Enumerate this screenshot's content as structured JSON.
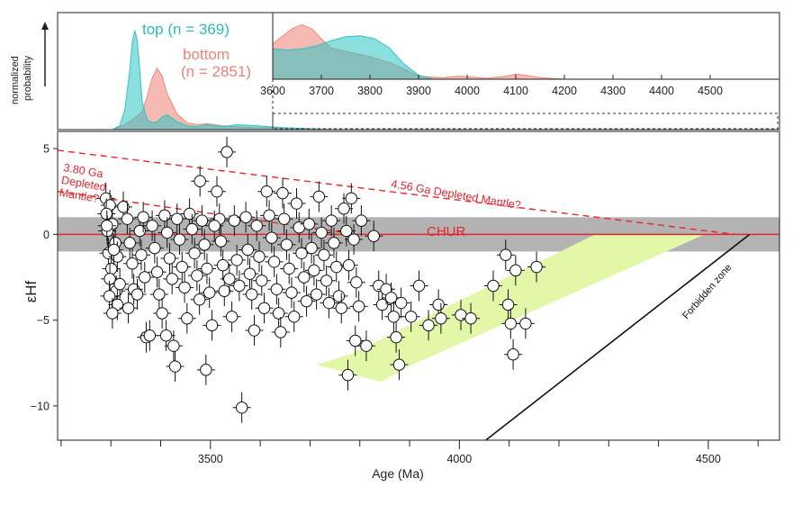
{
  "chart_data": [
    {
      "type": "area",
      "panel": "top density panel",
      "ylabel_lines": [
        "normalized",
        "probability"
      ],
      "xlim": [
        3200,
        4650
      ],
      "series": [
        {
          "name": "top (n = 369)",
          "color": "#2ec4c4",
          "x": [
            3310,
            3325,
            3335,
            3345,
            3350,
            3355,
            3360,
            3365,
            3370,
            3380,
            3390,
            3400,
            3410,
            3420,
            3440,
            3460,
            3480,
            3500,
            3530,
            3560,
            3600,
            3650,
            3700,
            3750
          ],
          "y": [
            0.0,
            0.04,
            0.2,
            0.6,
            0.88,
            1.0,
            0.9,
            0.6,
            0.28,
            0.1,
            0.07,
            0.08,
            0.13,
            0.15,
            0.08,
            0.04,
            0.03,
            0.05,
            0.03,
            0.05,
            0.04,
            0.02,
            0.01,
            0.0
          ]
        },
        {
          "name": "bottom (n = 2851)",
          "color": "#f08a80",
          "x": [
            3310,
            3330,
            3350,
            3370,
            3380,
            3390,
            3400,
            3410,
            3420,
            3440,
            3460,
            3480,
            3500,
            3530,
            3560,
            3600,
            3650,
            3700,
            3750
          ],
          "y": [
            0.0,
            0.04,
            0.1,
            0.18,
            0.34,
            0.52,
            0.62,
            0.54,
            0.36,
            0.16,
            0.07,
            0.05,
            0.06,
            0.04,
            0.03,
            0.02,
            0.02,
            0.01,
            0.0
          ]
        }
      ]
    },
    {
      "type": "area",
      "panel": "inset 3600-4600 Ma",
      "xlim": [
        3600,
        4600
      ],
      "x_ticks": [
        3600,
        3700,
        3800,
        3900,
        4000,
        4100,
        4200,
        4300,
        4400,
        4500
      ],
      "series": [
        {
          "name": "top",
          "color": "#2ec4c4",
          "x": [
            3600,
            3630,
            3660,
            3690,
            3720,
            3750,
            3780,
            3810,
            3840,
            3870,
            3900,
            3930
          ],
          "y": [
            0.6,
            0.58,
            0.6,
            0.66,
            0.76,
            0.84,
            0.86,
            0.8,
            0.62,
            0.3,
            0.08,
            0.0
          ]
        },
        {
          "name": "bottom",
          "color": "#f08a80",
          "x": [
            3600,
            3620,
            3640,
            3660,
            3680,
            3700,
            3720,
            3750,
            3800,
            3850,
            3900,
            3950,
            3980,
            4000,
            4040,
            4080,
            4100,
            4120,
            4150,
            4200
          ],
          "y": [
            0.7,
            0.85,
            1.0,
            1.08,
            1.0,
            0.8,
            0.62,
            0.55,
            0.45,
            0.3,
            0.06,
            0.03,
            0.06,
            0.05,
            0.02,
            0.06,
            0.1,
            0.08,
            0.03,
            0.0
          ]
        }
      ]
    },
    {
      "type": "scatter",
      "panel": "main",
      "xlabel": "Age (Ma)",
      "ylabel": "εHf",
      "xlim": [
        3200,
        4650
      ],
      "ylim": [
        -12,
        6
      ],
      "x_ticks": [
        3500,
        4000,
        4500
      ],
      "x_minor_step": 100,
      "y_ticks": [
        5,
        0,
        -5,
        -10
      ],
      "chur_band": [
        -1,
        1
      ],
      "annotations": {
        "chur": "CHUR",
        "dm456": "4.56 Ga Depleted Mantle?",
        "dm380": [
          "3.80 Ga",
          "Depleted",
          "Mantle?"
        ],
        "forbidden": "Forbidden zone"
      },
      "lines": {
        "chur": [
          [
            3200,
            0
          ],
          [
            4650,
            0
          ]
        ],
        "dm456": [
          [
            3200,
            4.9
          ],
          [
            4560,
            0
          ]
        ],
        "dm380": [
          [
            3200,
            2.5
          ],
          [
            3800,
            0
          ]
        ],
        "forbidden": [
          [
            4060,
            -12
          ],
          [
            4590,
            0
          ]
        ]
      },
      "arrow_polygon": [
        [
          4280,
          0
        ],
        [
          4500,
          0
        ],
        [
          3905,
          -7.7
        ],
        [
          3850,
          -8.6
        ],
        [
          3720,
          -7.6
        ],
        [
          3787,
          -7
        ],
        [
          4280,
          0
        ]
      ],
      "points": [
        [
          3297,
          2.1
        ],
        [
          3305,
          1.7
        ],
        [
          3298,
          1.2
        ],
        [
          3310,
          0.6
        ],
        [
          3300,
          0.2
        ],
        [
          3316,
          -0.5
        ],
        [
          3302,
          -1.1
        ],
        [
          3320,
          -1.3
        ],
        [
          3308,
          -2
        ],
        [
          3305,
          -2.6
        ],
        [
          3318,
          -3.3
        ],
        [
          3304,
          -3.6
        ],
        [
          3320,
          -4.1
        ],
        [
          3310,
          -4.6
        ],
        [
          3325,
          -2.9
        ],
        [
          3313,
          -0.9
        ],
        [
          3299,
          0.5
        ],
        [
          3332,
          1.6
        ],
        [
          3340,
          0.9
        ],
        [
          3345,
          -0.5
        ],
        [
          3350,
          -1.7
        ],
        [
          3353,
          -3.2
        ],
        [
          3342,
          -4.3
        ],
        [
          3365,
          0.2
        ],
        [
          3372,
          1.0
        ],
        [
          3368,
          -1.2
        ],
        [
          3375,
          -2.5
        ],
        [
          3360,
          -3.5
        ],
        [
          3378,
          -6
        ],
        [
          3385,
          -5.9
        ],
        [
          3390,
          0.5
        ],
        [
          3395,
          -0.8
        ],
        [
          3400,
          -2.2
        ],
        [
          3404,
          -3.5
        ],
        [
          3410,
          -4.6
        ],
        [
          3415,
          1.1
        ],
        [
          3420,
          0.1
        ],
        [
          3425,
          -1.4
        ],
        [
          3430,
          -2.6
        ],
        [
          3418,
          -5.9
        ],
        [
          3433,
          -6.5
        ],
        [
          3436,
          -7.7
        ],
        [
          3440,
          0.9
        ],
        [
          3445,
          -0.3
        ],
        [
          3450,
          -1.9
        ],
        [
          3455,
          -3.1
        ],
        [
          3460,
          -4.9
        ],
        [
          3465,
          1.2
        ],
        [
          3470,
          0.3
        ],
        [
          3475,
          -1.1
        ],
        [
          3480,
          -2.4
        ],
        [
          3485,
          -3.8
        ],
        [
          3490,
          0.8
        ],
        [
          3495,
          -0.6
        ],
        [
          3500,
          -2
        ],
        [
          3505,
          -3.4
        ],
        [
          3510,
          -5.3
        ],
        [
          3486,
          3.1
        ],
        [
          3498,
          -7.9
        ],
        [
          3520,
          2.5
        ],
        [
          3525,
          0.9
        ],
        [
          3528,
          -0.4
        ],
        [
          3532,
          -1.8
        ],
        [
          3535,
          -3.3
        ],
        [
          3515,
          0.5
        ],
        [
          3540,
          4.8
        ],
        [
          3545,
          -2.6
        ],
        [
          3550,
          -4.8
        ],
        [
          3555,
          0.8
        ],
        [
          3560,
          -1.5
        ],
        [
          3565,
          -3
        ],
        [
          3570,
          -10.1
        ],
        [
          3578,
          1.0
        ],
        [
          3582,
          -0.9
        ],
        [
          3586,
          -2.3
        ],
        [
          3590,
          -3.5
        ],
        [
          3595,
          -5.6
        ],
        [
          3600,
          0.5
        ],
        [
          3605,
          -1.3
        ],
        [
          3610,
          -2.7
        ],
        [
          3615,
          -4.3
        ],
        [
          3620,
          2.5
        ],
        [
          3625,
          1.1
        ],
        [
          3630,
          -0.2
        ],
        [
          3635,
          -1.6
        ],
        [
          3640,
          -3.2
        ],
        [
          3644,
          -4.6
        ],
        [
          3648,
          -5.7
        ],
        [
          3652,
          2.4
        ],
        [
          3655,
          0.9
        ],
        [
          3660,
          -0.6
        ],
        [
          3665,
          -2
        ],
        [
          3670,
          -3.4
        ],
        [
          3675,
          -4.8
        ],
        [
          3680,
          1.8
        ],
        [
          3685,
          0.4
        ],
        [
          3690,
          -1.1
        ],
        [
          3695,
          -2.5
        ],
        [
          3700,
          -3.9
        ],
        [
          3705,
          0.6
        ],
        [
          3710,
          -0.8
        ],
        [
          3715,
          -2.1
        ],
        [
          3720,
          -3.5
        ],
        [
          3725,
          2.2
        ],
        [
          3730,
          0.1
        ],
        [
          3735,
          -1.2
        ],
        [
          3740,
          -2.7
        ],
        [
          3745,
          -4
        ],
        [
          3750,
          0.8
        ],
        [
          3755,
          -0.5
        ],
        [
          3760,
          -1.9
        ],
        [
          3765,
          -3.6
        ],
        [
          3770,
          -4.3
        ],
        [
          3775,
          1.5
        ],
        [
          3780,
          0.2
        ],
        [
          3785,
          -1.8
        ],
        [
          3790,
          2.1
        ],
        [
          3795,
          -0.3
        ],
        [
          3800,
          -2.8
        ],
        [
          3805,
          -4.2
        ],
        [
          3810,
          0.8
        ],
        [
          3835,
          -0.1
        ],
        [
          3798,
          -6.2
        ],
        [
          3820,
          -6.5
        ],
        [
          3783,
          -8.2
        ],
        [
          3845,
          -3.0
        ],
        [
          3852,
          -4.1
        ],
        [
          3860,
          -3.2
        ],
        [
          3870,
          -3.7
        ],
        [
          3875,
          -4.8
        ],
        [
          3880,
          -6
        ],
        [
          3886,
          -7.6
        ],
        [
          3890,
          -4
        ],
        [
          3910,
          -4.8
        ],
        [
          3926,
          -3.0
        ],
        [
          3945,
          -5.3
        ],
        [
          3965,
          -4.1
        ],
        [
          3970,
          -4.9
        ],
        [
          4010,
          -4.7
        ],
        [
          4030,
          -4.9
        ],
        [
          4075,
          -3.0
        ],
        [
          4100,
          -1.2
        ],
        [
          4105,
          -4.1
        ],
        [
          4110,
          -5.2
        ],
        [
          4115,
          -7.0
        ],
        [
          4120,
          -2.1
        ],
        [
          4140,
          -5.2
        ],
        [
          4162,
          -1.9
        ]
      ]
    }
  ]
}
